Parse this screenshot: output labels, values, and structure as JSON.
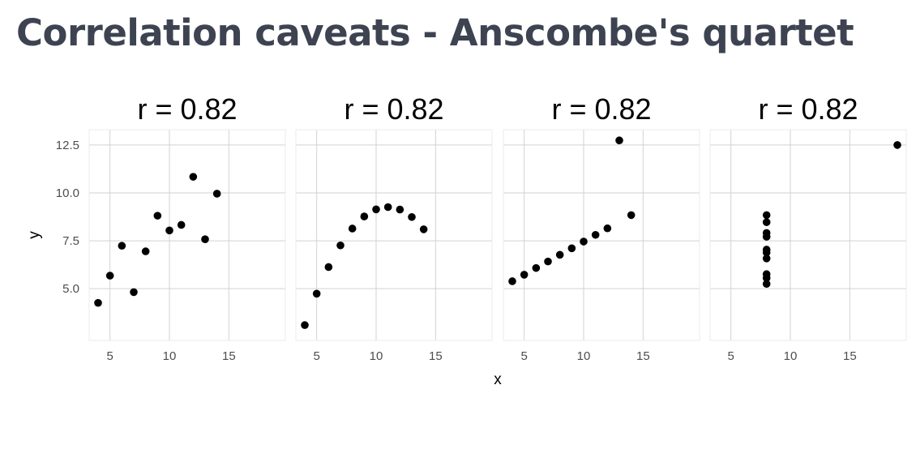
{
  "title": "Correlation caveats - Anscombe's quartet",
  "chart_data": {
    "type": "scatter",
    "layout": "facet-grid 1x4 (shared y)",
    "xlabel": "x",
    "ylabel": "y",
    "xlim": [
      3.25,
      19.75
    ],
    "ylim": [
      2.3,
      13.3
    ],
    "xticks": [
      5,
      10,
      15
    ],
    "xtick_labels": [
      "5",
      "10",
      "15"
    ],
    "yticks": [
      5.0,
      7.5,
      10.0,
      12.5
    ],
    "ytick_labels": [
      "5.0",
      "7.5",
      "10.0",
      "12.5"
    ],
    "grid": true,
    "point_color": "#000000",
    "panels": [
      {
        "title": "r = 0.82",
        "points": [
          [
            10,
            8.04
          ],
          [
            8,
            6.95
          ],
          [
            13,
            7.58
          ],
          [
            9,
            8.81
          ],
          [
            11,
            8.33
          ],
          [
            14,
            9.96
          ],
          [
            6,
            7.24
          ],
          [
            4,
            4.26
          ],
          [
            12,
            10.84
          ],
          [
            7,
            4.82
          ],
          [
            5,
            5.68
          ]
        ]
      },
      {
        "title": "r = 0.82",
        "points": [
          [
            10,
            9.14
          ],
          [
            8,
            8.14
          ],
          [
            13,
            8.74
          ],
          [
            9,
            8.77
          ],
          [
            11,
            9.26
          ],
          [
            14,
            8.1
          ],
          [
            6,
            6.13
          ],
          [
            4,
            3.1
          ],
          [
            12,
            9.13
          ],
          [
            7,
            7.26
          ],
          [
            5,
            4.74
          ]
        ]
      },
      {
        "title": "r = 0.82",
        "points": [
          [
            10,
            7.46
          ],
          [
            8,
            6.77
          ],
          [
            13,
            12.74
          ],
          [
            9,
            7.11
          ],
          [
            11,
            7.81
          ],
          [
            14,
            8.84
          ],
          [
            6,
            6.08
          ],
          [
            4,
            5.39
          ],
          [
            12,
            8.15
          ],
          [
            7,
            6.42
          ],
          [
            5,
            5.73
          ]
        ]
      },
      {
        "title": "r = 0.82",
        "points": [
          [
            8,
            6.58
          ],
          [
            8,
            5.76
          ],
          [
            8,
            7.71
          ],
          [
            8,
            8.84
          ],
          [
            8,
            8.47
          ],
          [
            8,
            7.04
          ],
          [
            8,
            5.25
          ],
          [
            19,
            12.5
          ],
          [
            8,
            5.56
          ],
          [
            8,
            7.91
          ],
          [
            8,
            6.89
          ]
        ]
      }
    ]
  }
}
